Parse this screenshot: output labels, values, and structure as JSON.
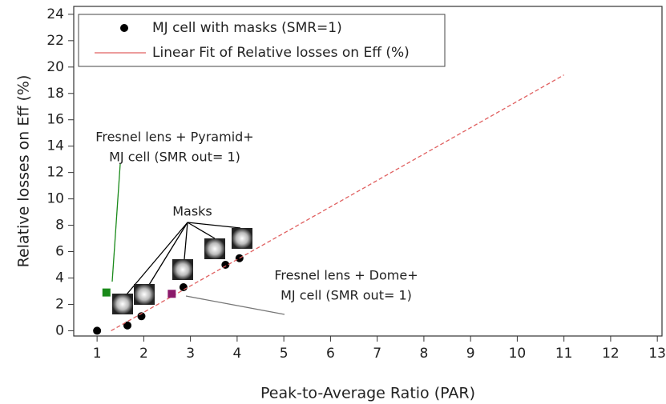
{
  "chart_data": {
    "type": "scatter",
    "x_label": "Peak-to-Average Ratio (PAR)",
    "y_label": "Relative losses on Eff (%)",
    "xlim": [
      0.5,
      13.1
    ],
    "ylim": [
      -0.4,
      24.6
    ],
    "xticks": [
      1,
      2,
      3,
      4,
      5,
      6,
      7,
      8,
      9,
      10,
      11,
      12,
      13
    ],
    "yticks": [
      0,
      2,
      4,
      6,
      8,
      10,
      12,
      14,
      16,
      18,
      20,
      22,
      24
    ],
    "series": [
      {
        "name": "MJ cell with masks (SMR=1)",
        "type": "scatter",
        "color": "#000000",
        "x": [
          1,
          1.65,
          1.95,
          2.85,
          3.75,
          4.05
        ],
        "values": [
          0,
          0.4,
          1.1,
          3.3,
          5.0,
          5.5
        ]
      },
      {
        "name": "Linear Fit of Relative losses on Eff (%)",
        "type": "line",
        "color": "#e06060",
        "x": [
          1.3,
          11
        ],
        "values": [
          0,
          19.4
        ]
      }
    ],
    "annotations": [
      {
        "text": "Masks"
      },
      {
        "lines": [
          "Fresnel lens + Pyramid+",
          "MJ cell (SMR out= 1)"
        ],
        "color": "#1a8a1a",
        "x": 1.2,
        "y": 2.9
      },
      {
        "lines": [
          "Fresnel lens + Dome+",
          "MJ cell (SMR out= 1)"
        ],
        "color": "#8b1a6b",
        "x": 2.6,
        "y": 2.8
      }
    ]
  }
}
